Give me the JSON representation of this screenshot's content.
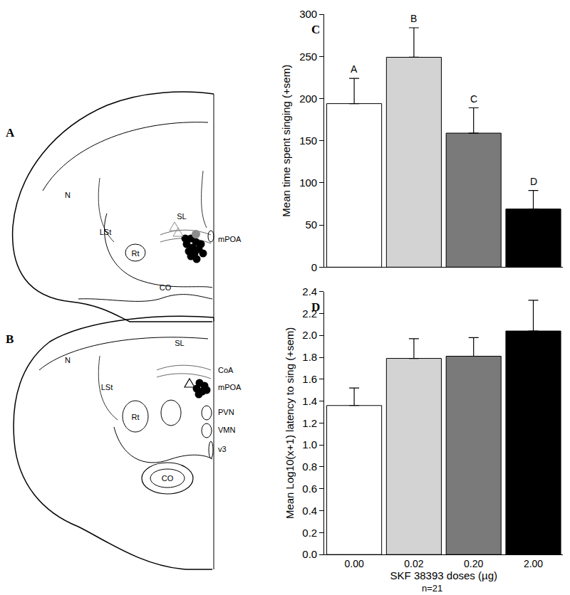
{
  "chart_data": [
    {
      "type": "bar",
      "label": "C",
      "categories": [
        null,
        null,
        null,
        null
      ],
      "values": [
        194,
        249,
        159,
        69
      ],
      "errors": [
        30,
        35,
        30,
        22
      ],
      "annotations": [
        "A",
        "B",
        "C",
        "D"
      ],
      "colors": [
        "#ffffff",
        "#d3d3d3",
        "#7a7a7a",
        "#000000"
      ],
      "ylabel": "Mean time spent singing (+sem)",
      "ylim": [
        0,
        300
      ],
      "yticks": [
        0,
        50,
        100,
        150,
        200,
        250,
        300
      ],
      "grid": false,
      "tick_labels": "y"
    },
    {
      "type": "bar",
      "label": "D",
      "categories": [
        "0.00",
        "0.02",
        "0.20",
        "2.00"
      ],
      "values": [
        1.36,
        1.79,
        1.81,
        2.04
      ],
      "errors": [
        0.16,
        0.18,
        0.17,
        0.28
      ],
      "colors": [
        "#ffffff",
        "#d3d3d3",
        "#7a7a7a",
        "#000000"
      ],
      "xlabel": "SKF 38393 doses (µg)",
      "ylabel": "Mean Log10(x+1) latency to sing (+sem)",
      "footnote": "n=21",
      "ylim": [
        0,
        2.4
      ],
      "yticks": [
        {
          "value": 0,
          "label": "0.0"
        },
        0.2,
        0.4,
        0.6,
        0.8,
        {
          "value": 1,
          "label": "1.0"
        },
        1.2,
        1.4,
        1.6,
        1.8,
        {
          "value": 2,
          "label": "2.0"
        },
        2.2,
        2.4
      ],
      "grid": false
    }
  ],
  "diagram": {
    "sections": [
      {
        "label": "A",
        "regions": [
          "N",
          "LSt",
          "SL",
          "mPOA",
          "Rt",
          "CO"
        ]
      },
      {
        "label": "B",
        "regions": [
          "N",
          "LSt",
          "SL",
          "CoA",
          "mPOA",
          "PVN",
          "VMN",
          "v3",
          "Rt",
          "CO"
        ]
      }
    ]
  }
}
